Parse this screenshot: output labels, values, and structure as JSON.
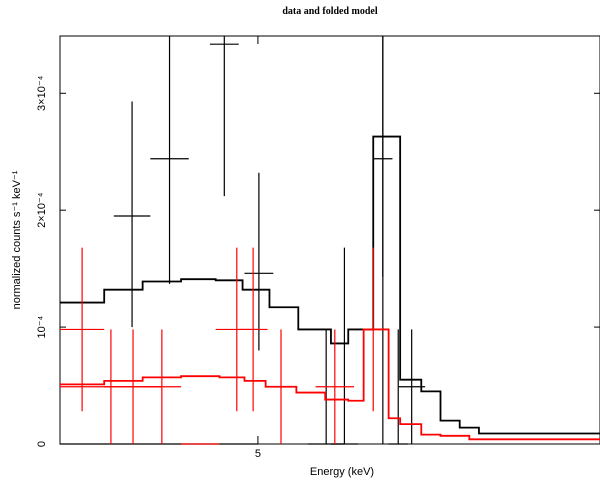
{
  "chart_data": {
    "type": "line",
    "title": "data and folded model",
    "xlabel": "Energy (keV)",
    "ylabel": "normalized counts s⁻¹ keV⁻¹",
    "xlim": [
      3.97,
      6.78
    ],
    "ylim": [
      0,
      0.000349
    ],
    "x_ticks": [
      {
        "value": 5,
        "label": "5"
      }
    ],
    "y_ticks": [
      {
        "value": 0,
        "label": "0"
      },
      {
        "value": 0.0001,
        "label": "10⁻⁴"
      },
      {
        "value": 0.0002,
        "label": "2×10⁻⁴"
      },
      {
        "value": 0.0003,
        "label": "3×10⁻⁴"
      }
    ],
    "grid": false,
    "series": [
      {
        "color": "#000000",
        "style": "errorbars",
        "points": [
          {
            "x0": 3.97,
            "x1": 5.0,
            "y": 0.0,
            "ylo": 0.0,
            "yhi": 0.0
          },
          {
            "x0": 4.25,
            "x1": 4.44,
            "y": 0.000195,
            "ylo": 0.0001,
            "yhi": 0.000293
          },
          {
            "x0": 4.44,
            "x1": 4.64,
            "y": 0.000244,
            "ylo": 0.000137,
            "yhi": 0.000349
          },
          {
            "x0": 4.75,
            "x1": 4.9,
            "y": 0.000342,
            "ylo": 0.000212,
            "yhi": 0.000349
          },
          {
            "x0": 4.93,
            "x1": 5.08,
            "y": 0.000146,
            "ylo": 8e-05,
            "yhi": 0.000232
          },
          {
            "x0": 5.26,
            "x1": 5.45,
            "y": 0.0,
            "ylo": 0.0,
            "yhi": 9.8e-05
          },
          {
            "x0": 5.38,
            "x1": 5.52,
            "y": 0.0,
            "ylo": 0.0,
            "yhi": 0.000168
          },
          {
            "x0": 5.6,
            "x1": 5.7,
            "y": 0.000244,
            "ylo": 0.000143,
            "yhi": 0.000349
          },
          {
            "x0": 5.6,
            "x1": 5.7,
            "y": 0.000263,
            "ylo": 0.0,
            "yhi": 0.000349
          },
          {
            "x0": 5.68,
            "x1": 5.78,
            "y": 0.0,
            "ylo": 0.0,
            "yhi": 9.8e-05
          },
          {
            "x0": 5.73,
            "x1": 5.87,
            "y": 4.9e-05,
            "ylo": 0.0,
            "yhi": 9.8e-05
          }
        ]
      },
      {
        "color": "#000000",
        "style": "step",
        "points": [
          [
            3.97,
            0.000121
          ],
          [
            4.2,
            0.000132
          ],
          [
            4.4,
            0.000139
          ],
          [
            4.6,
            0.000141
          ],
          [
            4.78,
            0.00014
          ],
          [
            4.92,
            0.000132
          ],
          [
            5.06,
            0.000117
          ],
          [
            5.21,
            9.8e-05
          ],
          [
            5.38,
            8.6e-05
          ],
          [
            5.47,
            9.8e-05
          ],
          [
            5.6,
            0.000263
          ],
          [
            5.74,
            5.5e-05
          ],
          [
            5.85,
            4.5e-05
          ],
          [
            5.95,
            2e-05
          ],
          [
            6.05,
            1.4e-05
          ],
          [
            6.15,
            9e-06
          ],
          [
            6.78,
            9e-06
          ]
        ]
      },
      {
        "color": "#ff0000",
        "style": "errorbars",
        "points": [
          {
            "x0": 3.97,
            "x1": 4.2,
            "y": 9.8e-05,
            "ylo": 2.8e-05,
            "yhi": 0.000168
          },
          {
            "x0": 3.97,
            "x1": 4.5,
            "y": 4.9e-05,
            "ylo": 0.0,
            "yhi": 9.8e-05
          },
          {
            "x0": 4.2,
            "x1": 4.5,
            "y": 4.9e-05,
            "ylo": 0.0,
            "yhi": 9.8e-05
          },
          {
            "x0": 4.4,
            "x1": 4.6,
            "y": 4.9e-05,
            "ylo": 0.0,
            "yhi": 9.8e-05
          },
          {
            "x0": 4.6,
            "x1": 4.8,
            "y": 0.0,
            "ylo": 0.0,
            "yhi": 0.0
          },
          {
            "x0": 4.78,
            "x1": 5.0,
            "y": 9.8e-05,
            "ylo": 2.8e-05,
            "yhi": 0.000168
          },
          {
            "x0": 4.9,
            "x1": 5.05,
            "y": 9.8e-05,
            "ylo": 2.8e-05,
            "yhi": 0.000168
          },
          {
            "x0": 5.04,
            "x1": 5.2,
            "y": 4.9e-05,
            "ylo": 0.0,
            "yhi": 9.8e-05
          },
          {
            "x0": 5.3,
            "x1": 5.5,
            "y": 4.9e-05,
            "ylo": 0.0,
            "yhi": 9.8e-05
          },
          {
            "x0": 5.55,
            "x1": 5.65,
            "y": 9.8e-05,
            "ylo": 2.8e-05,
            "yhi": 0.000168
          }
        ]
      },
      {
        "color": "#ff0000",
        "style": "step",
        "points": [
          [
            3.97,
            5.1e-05
          ],
          [
            4.2,
            5.4e-05
          ],
          [
            4.4,
            5.7e-05
          ],
          [
            4.6,
            5.8e-05
          ],
          [
            4.8,
            5.7e-05
          ],
          [
            4.93,
            5.4e-05
          ],
          [
            5.04,
            4.9e-05
          ],
          [
            5.2,
            4.4e-05
          ],
          [
            5.35,
            3.8e-05
          ],
          [
            5.47,
            3.7e-05
          ],
          [
            5.55,
            9.8e-05
          ],
          [
            5.68,
            2.2e-05
          ],
          [
            5.74,
            1.7e-05
          ],
          [
            5.85,
            8e-06
          ],
          [
            5.95,
            7e-06
          ],
          [
            6.1,
            4e-06
          ],
          [
            6.78,
            4e-06
          ]
        ]
      }
    ]
  }
}
